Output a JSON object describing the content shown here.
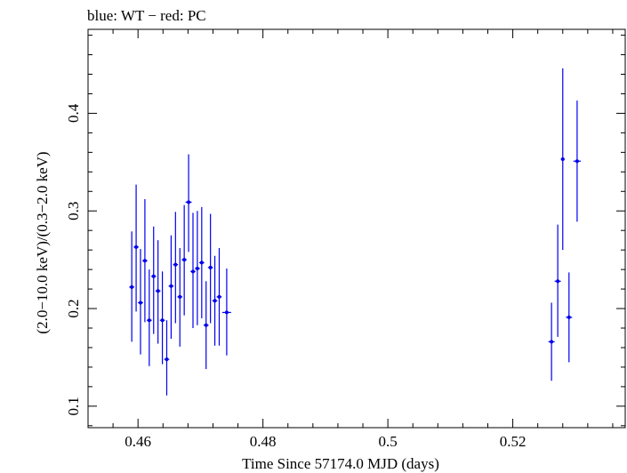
{
  "chart_data": {
    "type": "scatter",
    "title": "blue: WT − red: PC",
    "xlabel": "Time Since 57174.0 MJD (days)",
    "ylabel": "(2.0−10.0 keV)/(0.3−2.0 keV)",
    "xlim": [
      0.452,
      0.538
    ],
    "ylim": [
      0.078,
      0.486
    ],
    "xticks": [
      0.46,
      0.48,
      0.5,
      0.52
    ],
    "xtick_labels": [
      "0.46",
      "0.48",
      "0.5",
      "0.52"
    ],
    "yticks": [
      0.1,
      0.2,
      0.3,
      0.4
    ],
    "ytick_labels": [
      "0.1",
      "0.2",
      "0.3",
      "0.4"
    ],
    "grid": false,
    "series": [
      {
        "color": "#0000ee",
        "points": [
          {
            "x": 0.459,
            "y": 0.222,
            "ylo": 0.166,
            "yhi": 0.279,
            "xerr": 0.0004
          },
          {
            "x": 0.4597,
            "y": 0.263,
            "ylo": 0.197,
            "yhi": 0.327,
            "xerr": 0.0004
          },
          {
            "x": 0.4604,
            "y": 0.206,
            "ylo": 0.153,
            "yhi": 0.261,
            "xerr": 0.0004
          },
          {
            "x": 0.4611,
            "y": 0.249,
            "ylo": 0.186,
            "yhi": 0.312,
            "xerr": 0.0004
          },
          {
            "x": 0.4618,
            "y": 0.188,
            "ylo": 0.141,
            "yhi": 0.24,
            "xerr": 0.0004
          },
          {
            "x": 0.4625,
            "y": 0.233,
            "ylo": 0.174,
            "yhi": 0.284,
            "xerr": 0.0004
          },
          {
            "x": 0.4632,
            "y": 0.218,
            "ylo": 0.164,
            "yhi": 0.27,
            "xerr": 0.0004
          },
          {
            "x": 0.4639,
            "y": 0.188,
            "ylo": 0.143,
            "yhi": 0.238,
            "xerr": 0.0004
          },
          {
            "x": 0.4646,
            "y": 0.148,
            "ylo": 0.111,
            "yhi": 0.188,
            "xerr": 0.0004
          },
          {
            "x": 0.4653,
            "y": 0.223,
            "ylo": 0.169,
            "yhi": 0.275,
            "xerr": 0.0004
          },
          {
            "x": 0.466,
            "y": 0.245,
            "ylo": 0.185,
            "yhi": 0.299,
            "xerr": 0.0004
          },
          {
            "x": 0.4667,
            "y": 0.212,
            "ylo": 0.161,
            "yhi": 0.262,
            "xerr": 0.0004
          },
          {
            "x": 0.4674,
            "y": 0.25,
            "ylo": 0.193,
            "yhi": 0.306,
            "xerr": 0.0004
          },
          {
            "x": 0.4681,
            "y": 0.309,
            "ylo": 0.258,
            "yhi": 0.358,
            "xerr": 0.0005
          },
          {
            "x": 0.4688,
            "y": 0.238,
            "ylo": 0.18,
            "yhi": 0.298,
            "xerr": 0.0004
          },
          {
            "x": 0.4695,
            "y": 0.241,
            "ylo": 0.183,
            "yhi": 0.3,
            "xerr": 0.0004
          },
          {
            "x": 0.4702,
            "y": 0.247,
            "ylo": 0.19,
            "yhi": 0.304,
            "xerr": 0.0004
          },
          {
            "x": 0.4709,
            "y": 0.183,
            "ylo": 0.138,
            "yhi": 0.228,
            "xerr": 0.0004
          },
          {
            "x": 0.4716,
            "y": 0.242,
            "ylo": 0.185,
            "yhi": 0.297,
            "xerr": 0.0004
          },
          {
            "x": 0.4723,
            "y": 0.208,
            "ylo": 0.162,
            "yhi": 0.254,
            "xerr": 0.0004
          },
          {
            "x": 0.473,
            "y": 0.212,
            "ylo": 0.162,
            "yhi": 0.262,
            "xerr": 0.0004
          },
          {
            "x": 0.4742,
            "y": 0.196,
            "ylo": 0.152,
            "yhi": 0.241,
            "xerr": 0.0007
          },
          {
            "x": 0.5262,
            "y": 0.166,
            "ylo": 0.126,
            "yhi": 0.206,
            "xerr": 0.0005
          },
          {
            "x": 0.5272,
            "y": 0.228,
            "ylo": 0.171,
            "yhi": 0.286,
            "xerr": 0.0005
          },
          {
            "x": 0.528,
            "y": 0.353,
            "ylo": 0.26,
            "yhi": 0.446,
            "xerr": 0.0003
          },
          {
            "x": 0.529,
            "y": 0.191,
            "ylo": 0.145,
            "yhi": 0.237,
            "xerr": 0.0005
          },
          {
            "x": 0.5303,
            "y": 0.351,
            "ylo": 0.289,
            "yhi": 0.413,
            "xerr": 0.0006
          }
        ]
      }
    ]
  }
}
